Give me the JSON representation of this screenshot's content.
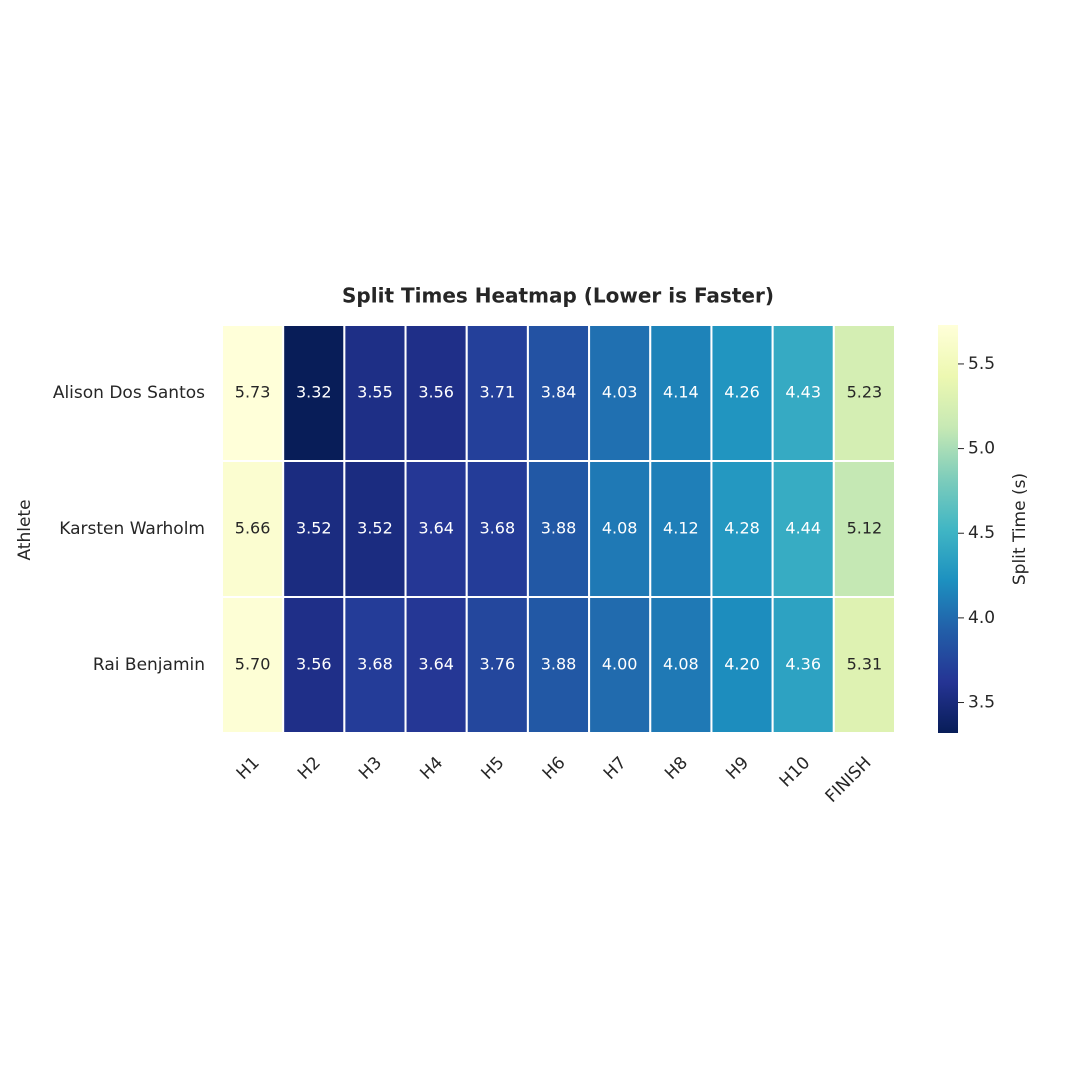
{
  "chart_data": {
    "type": "heatmap",
    "title": "Split Times Heatmap (Lower is Faster)",
    "ylabel": "Athlete",
    "colorbar_label": "Split Time (s)",
    "categories": [
      "H1",
      "H2",
      "H3",
      "H4",
      "H5",
      "H6",
      "H7",
      "H8",
      "H9",
      "H10",
      "FINISH"
    ],
    "rows": [
      "Alison Dos Santos",
      "Karsten Warholm",
      "Rai Benjamin"
    ],
    "values": [
      [
        5.73,
        3.32,
        3.55,
        3.56,
        3.71,
        3.84,
        4.03,
        4.14,
        4.26,
        4.43,
        5.23
      ],
      [
        5.66,
        3.52,
        3.52,
        3.64,
        3.68,
        3.88,
        4.08,
        4.12,
        4.28,
        4.44,
        5.12
      ],
      [
        5.7,
        3.56,
        3.68,
        3.64,
        3.76,
        3.88,
        4.0,
        4.08,
        4.2,
        4.36,
        5.31
      ]
    ],
    "value_labels": [
      [
        "5.73",
        "3.32",
        "3.55",
        "3.56",
        "3.71",
        "3.84",
        "4.03",
        "4.14",
        "4.26",
        "4.43",
        "5.23"
      ],
      [
        "5.66",
        "3.52",
        "3.52",
        "3.64",
        "3.68",
        "3.88",
        "4.08",
        "4.12",
        "4.28",
        "4.44",
        "5.12"
      ],
      [
        "5.70",
        "3.56",
        "3.68",
        "3.64",
        "3.76",
        "3.88",
        "4.00",
        "4.08",
        "4.20",
        "4.36",
        "5.31"
      ]
    ],
    "zlim": [
      3.32,
      5.73
    ],
    "zticks": [
      3.5,
      {
        "value": 4,
        "label": "4.0"
      },
      4.5,
      {
        "value": 5,
        "label": "5.0"
      },
      5.5
    ],
    "colormap": [
      "#081d58",
      "#253494",
      "#225ea8",
      "#1d91c0",
      "#41b6c4",
      "#7fcdbb",
      "#c7e9b4",
      "#edf8b1",
      "#ffffd9"
    ]
  }
}
